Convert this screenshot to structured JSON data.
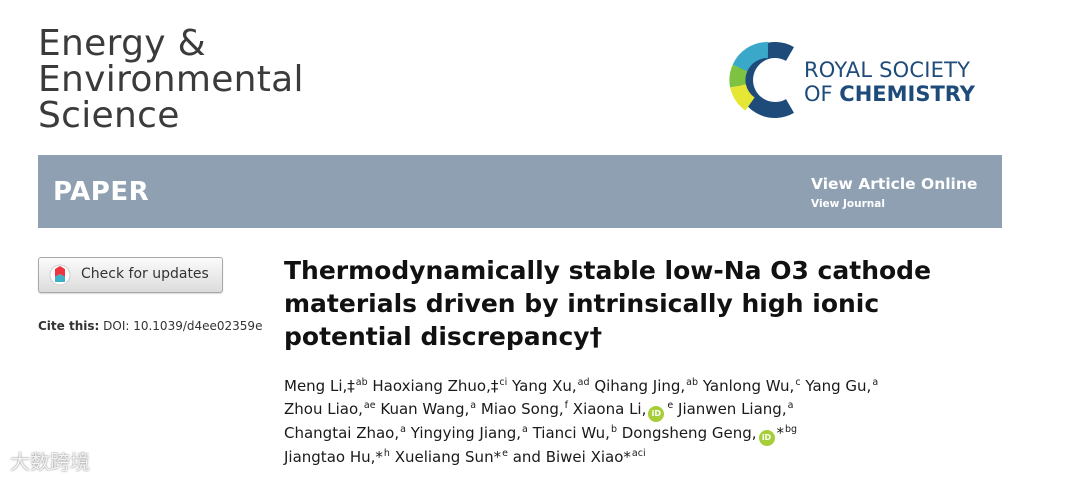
{
  "journal": {
    "line1": "Energy &",
    "line2": "Environmental",
    "line3": "Science"
  },
  "publisher": {
    "line1": "ROYAL SOCIETY",
    "line2_prefix": "OF ",
    "line2_bold": "CHEMISTRY",
    "color": "#1e4b7a"
  },
  "banner": {
    "label": "PAPER",
    "view_online": "View Article Online",
    "view_journal": "View Journal",
    "color": "#8fa0b3"
  },
  "check_updates": {
    "label": "Check for updates"
  },
  "cite": {
    "prefix": "Cite this:",
    "doi": " DOI: 10.1039/d4ee02359e"
  },
  "title": {
    "line1": "Thermodynamically stable low-Na O3 cathode",
    "line2": "materials driven by intrinsically high ionic",
    "line3": "potential discrepancy†"
  },
  "authors": [
    {
      "name": "Meng Li,‡",
      "sup": "ab",
      "orcid": false,
      "corr": false
    },
    {
      "name": "Haoxiang Zhuo,‡",
      "sup": "ci",
      "orcid": false,
      "corr": false
    },
    {
      "name": "Yang Xu,",
      "sup": "ad",
      "orcid": false,
      "corr": false
    },
    {
      "name": "Qihang Jing,",
      "sup": "ab",
      "orcid": false,
      "corr": false
    },
    {
      "name": "Yanlong Wu,",
      "sup": "c",
      "orcid": false,
      "corr": false
    },
    {
      "name": "Yang Gu,",
      "sup": "a",
      "orcid": false,
      "corr": false
    },
    {
      "name": "Zhou Liao,",
      "sup": "ae",
      "orcid": false,
      "corr": false
    },
    {
      "name": "Kuan Wang,",
      "sup": "a",
      "orcid": false,
      "corr": false
    },
    {
      "name": "Miao Song,",
      "sup": "f",
      "orcid": false,
      "corr": false
    },
    {
      "name": "Xiaona Li,",
      "sup": "e",
      "orcid": true,
      "corr": false
    },
    {
      "name": "Jianwen Liang,",
      "sup": "a",
      "orcid": false,
      "corr": false
    },
    {
      "name": "Changtai Zhao,",
      "sup": "a",
      "orcid": false,
      "corr": false
    },
    {
      "name": "Yingying Jiang,",
      "sup": "a",
      "orcid": false,
      "corr": false
    },
    {
      "name": "Tianci Wu,",
      "sup": "b",
      "orcid": false,
      "corr": false
    },
    {
      "name": "Dongsheng Geng,",
      "sup": "bg",
      "orcid": true,
      "corr": true
    },
    {
      "name": "Jiangtao Hu,",
      "sup": "h",
      "orcid": false,
      "corr": true
    },
    {
      "name": "Xueliang Sun",
      "sup": "e",
      "orcid": false,
      "corr": true
    },
    {
      "name": "and Biwei Xiao",
      "sup": "aci",
      "orcid": false,
      "corr": true
    }
  ],
  "orcid_label": "iD",
  "corr_mark": "*",
  "watermark": "大数跨境"
}
